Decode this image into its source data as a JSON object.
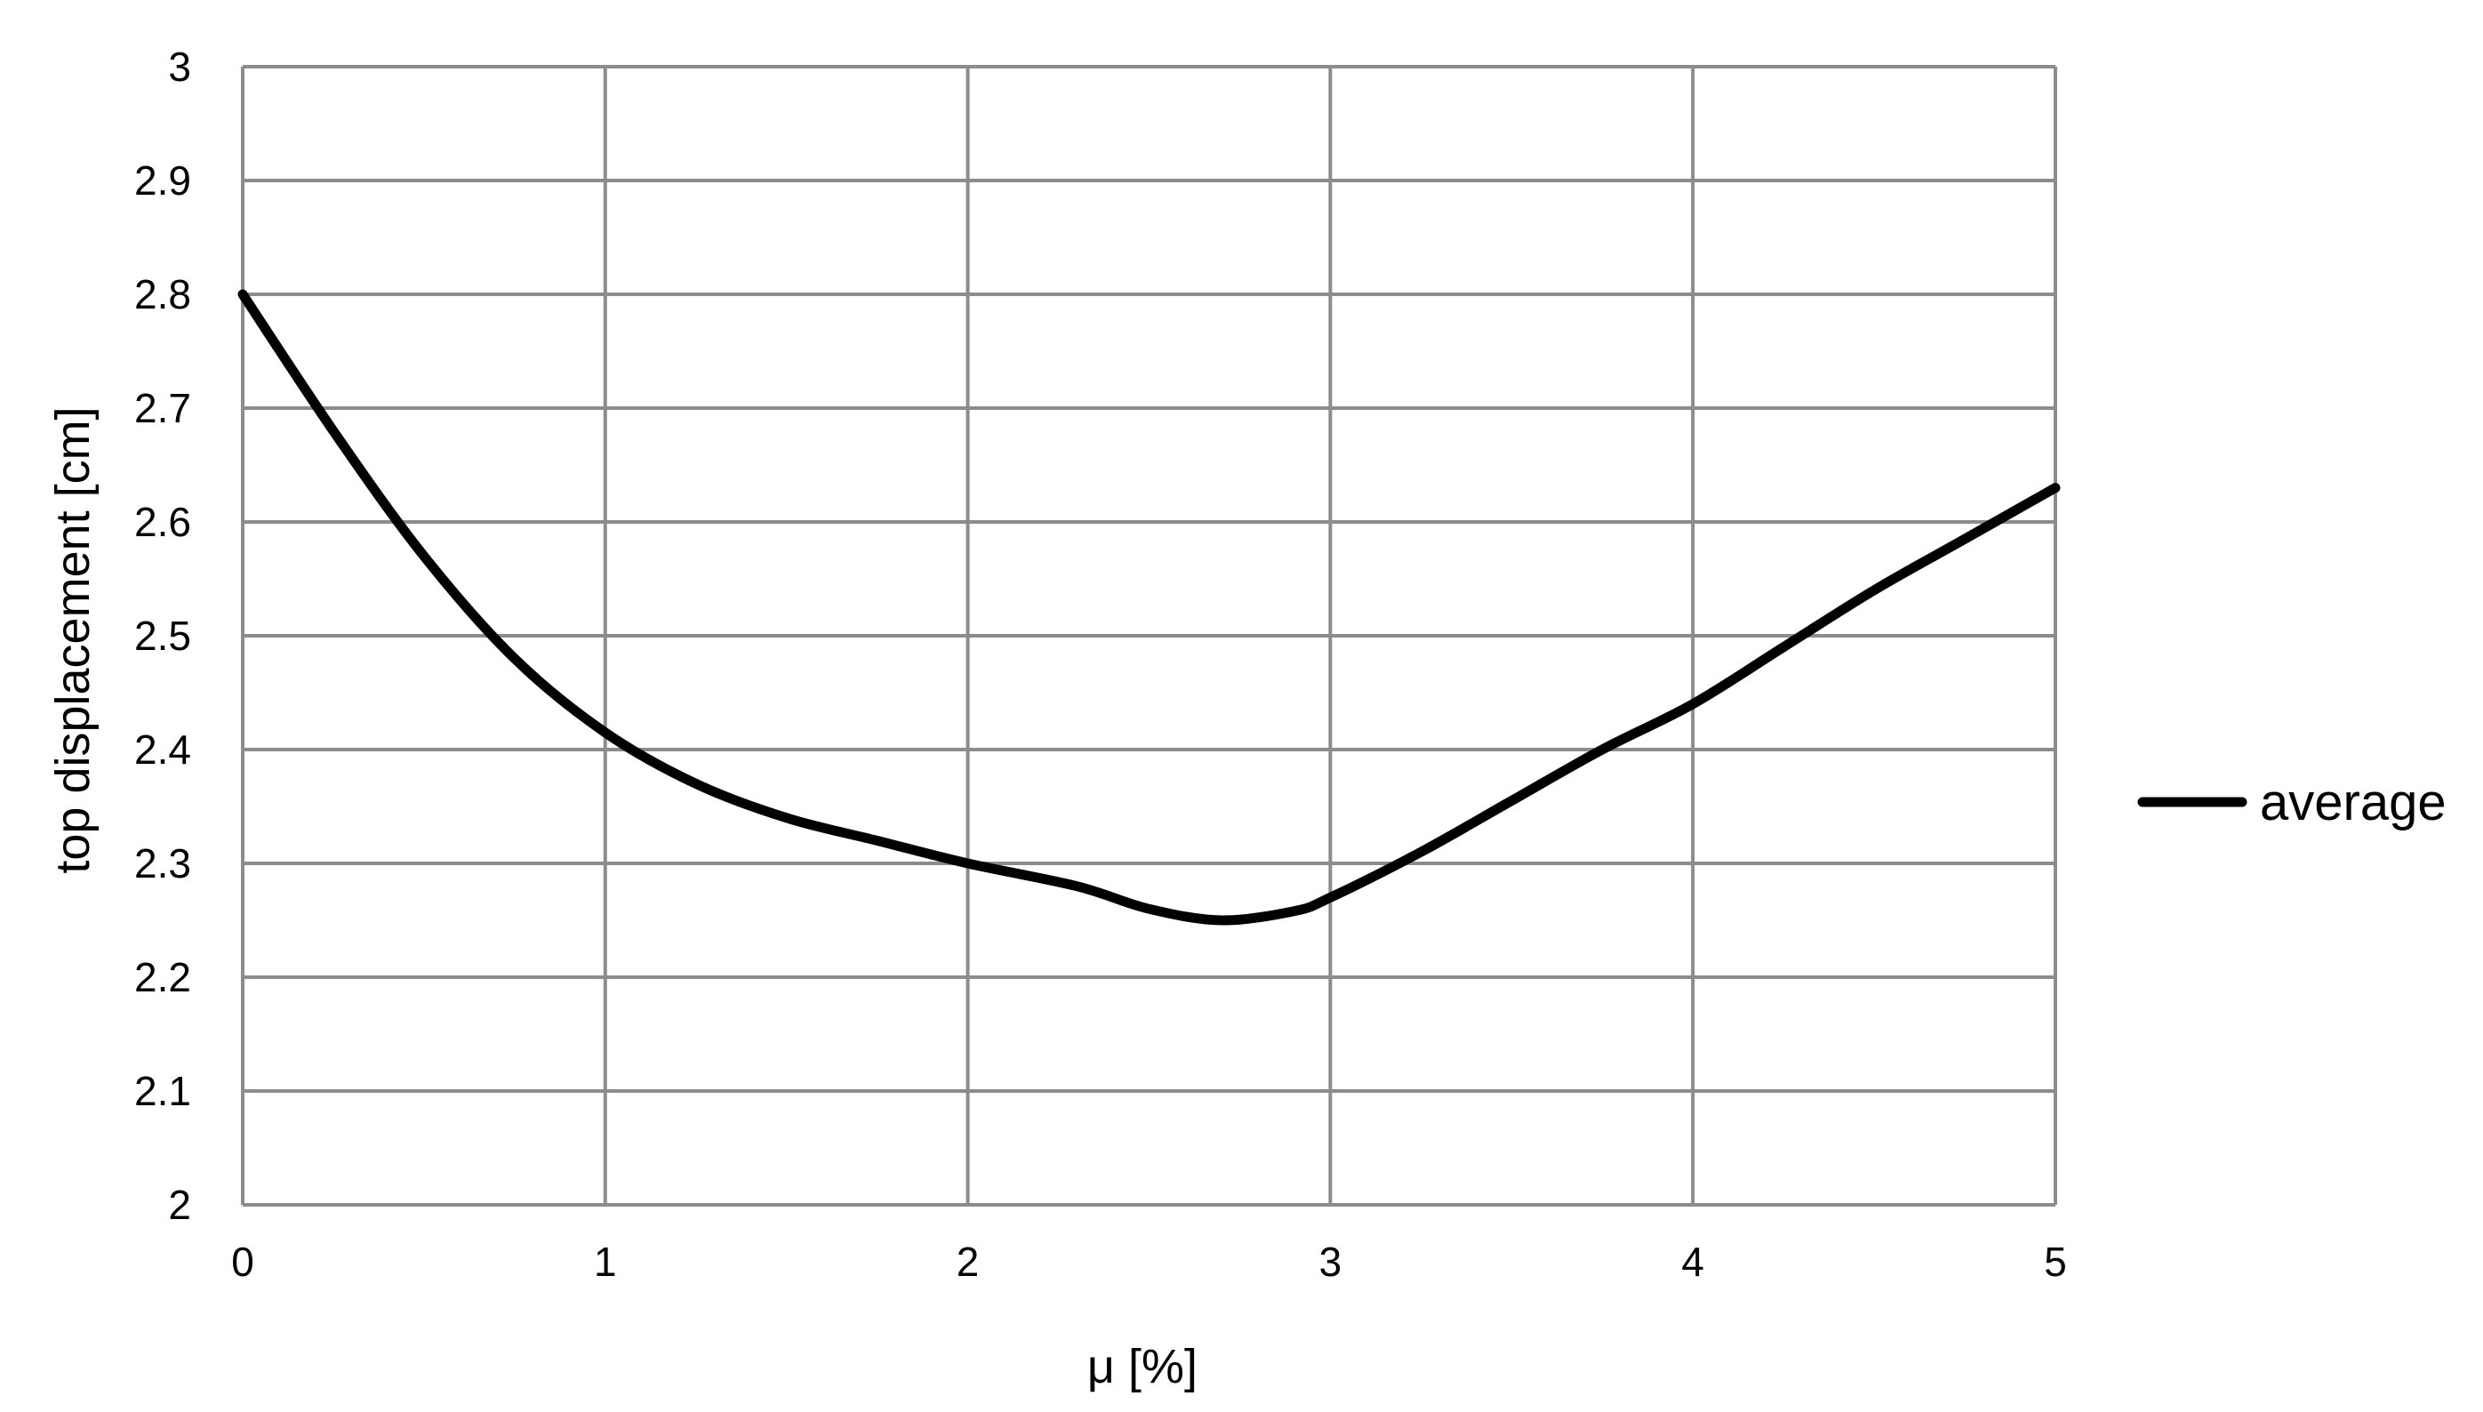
{
  "chart_data": {
    "type": "line",
    "title": "",
    "xlabel": "μ [%]",
    "ylabel": "top displacement [cm]",
    "xlim": [
      0,
      5
    ],
    "ylim": [
      2,
      3
    ],
    "x_ticks": [
      "0",
      "1",
      "2",
      "3",
      "4",
      "5"
    ],
    "y_ticks": [
      "2",
      "2.1",
      "2.2",
      "2.3",
      "2.4",
      "2.5",
      "2.6",
      "2.7",
      "2.8",
      "2.9",
      "3"
    ],
    "grid": true,
    "legend": {
      "placement": "right",
      "entries": [
        "average"
      ]
    },
    "colors": {
      "series": "#000000",
      "grid": "#8c8c8c",
      "axis": "#8c8c8c"
    },
    "series": [
      {
        "name": "average",
        "x": [
          0,
          0.25,
          0.5,
          0.75,
          1,
          1.25,
          1.5,
          1.75,
          2,
          2.3,
          2.5,
          2.7,
          2.9,
          3,
          3.25,
          3.5,
          3.75,
          4,
          4.25,
          4.5,
          4.75,
          5
        ],
        "y": [
          2.8,
          2.68,
          2.57,
          2.48,
          2.415,
          2.37,
          2.34,
          2.32,
          2.3,
          2.28,
          2.26,
          2.25,
          2.258,
          2.27,
          2.31,
          2.355,
          2.4,
          2.44,
          2.49,
          2.54,
          2.585,
          2.63
        ]
      }
    ]
  }
}
